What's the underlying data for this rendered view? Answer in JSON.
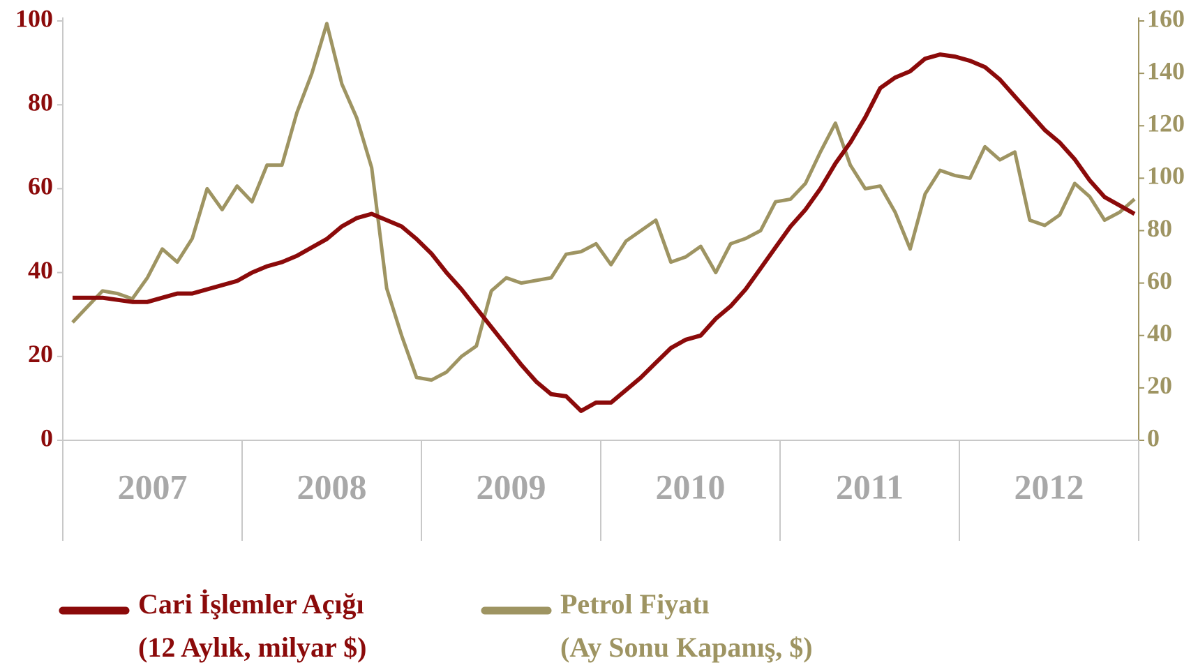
{
  "chart_data": {
    "type": "line",
    "categories": [
      null,
      null,
      null,
      null,
      null,
      null,
      null,
      null,
      null,
      null,
      null,
      null,
      null,
      null,
      null,
      null,
      null,
      null,
      null,
      null,
      null,
      null,
      null,
      null,
      null,
      null,
      null,
      null,
      null,
      null,
      null,
      null,
      null,
      null,
      null,
      null,
      null,
      null,
      null,
      null,
      null,
      null,
      null,
      null,
      null,
      null,
      null,
      null,
      null,
      null,
      null,
      null,
      null,
      null,
      null,
      null,
      null,
      null,
      null,
      null,
      null,
      null,
      null,
      null,
      null,
      null,
      null,
      null,
      null,
      null,
      null,
      null
    ],
    "year_labels": [
      "2007",
      "2008",
      "2009",
      "2010",
      "2011",
      "2012"
    ],
    "series": [
      {
        "name": "Cari İşlemler Açığı",
        "name_note": "(12 Aylık, milyar $)",
        "color": "#8b0a0a",
        "axis": "y",
        "values": [
          34,
          34,
          34,
          33.5,
          33,
          33,
          34,
          35,
          35,
          36,
          37,
          38,
          40,
          41.5,
          42.5,
          44,
          46,
          48,
          51,
          53,
          54,
          52.5,
          51,
          48,
          44.5,
          40,
          36,
          31.5,
          27,
          22.5,
          18,
          14,
          11,
          10.5,
          7,
          9,
          9,
          12,
          15,
          18.5,
          22,
          24,
          25,
          29,
          32,
          36,
          41,
          46,
          51,
          55,
          60,
          66,
          71,
          77,
          84,
          86.5,
          88,
          91,
          92,
          91.5,
          90.5,
          89,
          86,
          82,
          78,
          74,
          71,
          67,
          62,
          58,
          56,
          54
        ]
      },
      {
        "name": "Petrol Fiyatı",
        "name_note": "(Ay Sonu Kapanış, $)",
        "color": "#9e9462",
        "axis": "y2",
        "values": [
          45,
          51,
          57,
          56,
          54,
          62,
          73,
          68,
          77,
          96,
          88,
          97,
          91,
          105,
          105,
          125,
          140,
          159,
          136,
          123,
          104,
          58,
          40,
          24,
          23,
          26,
          32,
          36,
          57,
          62,
          60,
          61,
          62,
          71,
          72,
          75,
          67,
          76,
          80,
          84,
          68,
          70,
          74,
          64,
          75,
          77,
          80,
          91,
          92,
          98,
          110,
          121,
          105,
          96,
          97,
          87,
          73,
          94,
          103,
          101,
          100,
          112,
          107,
          110,
          84,
          82,
          86,
          98,
          93,
          84,
          87,
          92
        ]
      }
    ],
    "ylim": [
      0,
      100
    ],
    "yticks": [
      0,
      20,
      40,
      60,
      80,
      100
    ],
    "y2lim": [
      0,
      160
    ],
    "y2ticks": [
      0,
      20,
      40,
      60,
      80,
      100,
      120,
      140,
      160
    ]
  }
}
